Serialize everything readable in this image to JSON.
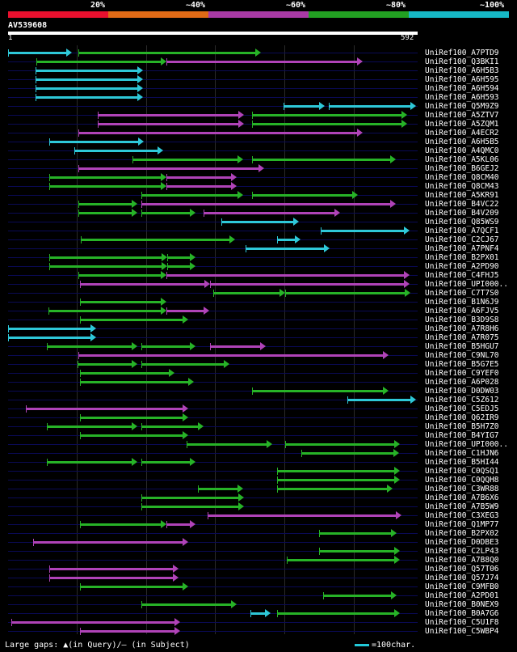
{
  "legend": {
    "labels": [
      "20%",
      "~40%",
      "~60%",
      "~80%",
      "~100%"
    ],
    "colors": [
      "#e8102e",
      "#e06a16",
      "#a93aa5",
      "#22a022",
      "#16b8c6"
    ]
  },
  "query": {
    "name": "AV539608",
    "start": "1",
    "end": "592",
    "length": 592
  },
  "colors": {
    "cyan": "#2ec8d8",
    "green": "#27b327",
    "magenta": "#b043b8",
    "row": "#0a0a55"
  },
  "hits": [
    {
      "name": "UniRef100_A7PTD9",
      "segs": [
        [
          0,
          92,
          "c"
        ],
        [
          102,
          365,
          "g"
        ]
      ]
    },
    {
      "name": "UniRef100_Q3BKI1",
      "segs": [
        [
          41,
          229,
          "g"
        ],
        [
          229,
          513,
          "m"
        ]
      ]
    },
    {
      "name": "UniRef100_A6H5B3",
      "segs": [
        [
          40,
          195,
          "c"
        ]
      ]
    },
    {
      "name": "UniRef100_A6H595",
      "segs": [
        [
          40,
          195,
          "c"
        ]
      ]
    },
    {
      "name": "UniRef100_A6H594",
      "segs": [
        [
          40,
          195,
          "c"
        ]
      ]
    },
    {
      "name": "UniRef100_A6H593",
      "segs": [
        [
          40,
          195,
          "c"
        ]
      ]
    },
    {
      "name": "UniRef100_Q5M9Z9",
      "segs": [
        [
          398,
          458,
          "c"
        ],
        [
          463,
          590,
          "c"
        ]
      ]
    },
    {
      "name": "UniRef100_A5ZTV7",
      "segs": [
        [
          130,
          341,
          "m"
        ],
        [
          352,
          577,
          "g"
        ]
      ]
    },
    {
      "name": "UniRef100_A5ZQM1",
      "segs": [
        [
          130,
          341,
          "m"
        ],
        [
          352,
          577,
          "g"
        ]
      ]
    },
    {
      "name": "UniRef100_A4ECR2",
      "segs": [
        [
          102,
          512,
          "m"
        ]
      ]
    },
    {
      "name": "UniRef100_A6H5B5",
      "segs": [
        [
          60,
          196,
          "c"
        ]
      ]
    },
    {
      "name": "UniRef100_A4QMC0",
      "segs": [
        [
          96,
          224,
          "c"
        ]
      ]
    },
    {
      "name": "UniRef100_A5KL06",
      "segs": [
        [
          180,
          340,
          "g"
        ],
        [
          353,
          560,
          "g"
        ]
      ]
    },
    {
      "name": "UniRef100_B6GEJ2",
      "segs": [
        [
          101,
          370,
          "m"
        ]
      ]
    },
    {
      "name": "UniRef100_Q8CM40",
      "segs": [
        [
          60,
          229,
          "g"
        ],
        [
          229,
          330,
          "m"
        ]
      ]
    },
    {
      "name": "UniRef100_Q8CM43",
      "segs": [
        [
          60,
          229,
          "g"
        ],
        [
          229,
          330,
          "m"
        ]
      ]
    },
    {
      "name": "UniRef100_A5KR91",
      "segs": [
        [
          193,
          340,
          "g"
        ],
        [
          353,
          505,
          "g"
        ]
      ]
    },
    {
      "name": "UniRef100_B4VC22",
      "segs": [
        [
          102,
          187,
          "g"
        ],
        [
          193,
          560,
          "m"
        ]
      ]
    },
    {
      "name": "UniRef100_B4V209",
      "segs": [
        [
          102,
          187,
          "g"
        ],
        [
          193,
          271,
          "g"
        ],
        [
          283,
          480,
          "m"
        ]
      ]
    },
    {
      "name": "UniRef100_Q85WS9",
      "segs": [
        [
          308,
          420,
          "c"
        ]
      ]
    },
    {
      "name": "UniRef100_A7QCF1",
      "segs": [
        [
          452,
          580,
          "c"
        ]
      ]
    },
    {
      "name": "UniRef100_C2CJ67",
      "segs": [
        [
          105,
          328,
          "g"
        ],
        [
          389,
          423,
          "c"
        ]
      ]
    },
    {
      "name": "UniRef100_A7PNF4",
      "segs": [
        [
          343,
          465,
          "c"
        ]
      ]
    },
    {
      "name": "UniRef100_B2PX01",
      "segs": [
        [
          60,
          230,
          "g"
        ],
        [
          230,
          271,
          "g"
        ]
      ]
    },
    {
      "name": "UniRef100_A2PD90",
      "segs": [
        [
          60,
          230,
          "g"
        ],
        [
          230,
          271,
          "g"
        ]
      ]
    },
    {
      "name": "UniRef100_C4FHJ5",
      "segs": [
        [
          102,
          229,
          "g"
        ],
        [
          229,
          580,
          "m"
        ]
      ]
    },
    {
      "name": "UniRef100_UPI000..",
      "segs": [
        [
          104,
          292,
          "m"
        ],
        [
          292,
          580,
          "m"
        ]
      ]
    },
    {
      "name": "UniRef100_C7T7S0",
      "segs": [
        [
          296,
          400,
          "g"
        ],
        [
          400,
          581,
          "g"
        ]
      ]
    },
    {
      "name": "UniRef100_B1N6J9",
      "segs": [
        [
          104,
          229,
          "g"
        ]
      ]
    },
    {
      "name": "UniRef100_A6FJV5",
      "segs": [
        [
          58,
          229,
          "g"
        ],
        [
          229,
          291,
          "m"
        ]
      ]
    },
    {
      "name": "UniRef100_B3D9S8",
      "segs": [
        [
          104,
          260,
          "g"
        ]
      ]
    },
    {
      "name": "UniRef100_A7R8H6",
      "segs": [
        [
          0,
          127,
          "c"
        ]
      ]
    },
    {
      "name": "UniRef100_A7R075",
      "segs": [
        [
          0,
          127,
          "c"
        ]
      ]
    },
    {
      "name": "UniRef100_B5HGU7",
      "segs": [
        [
          56,
          187,
          "g"
        ],
        [
          193,
          271,
          "g"
        ],
        [
          292,
          373,
          "m"
        ]
      ]
    },
    {
      "name": "UniRef100_C9NL70",
      "segs": [
        [
          102,
          550,
          "m"
        ]
      ]
    },
    {
      "name": "UniRef100_B5G7E5",
      "segs": [
        [
          100,
          187,
          "g"
        ],
        [
          193,
          320,
          "g"
        ]
      ]
    },
    {
      "name": "UniRef100_C9YEF0",
      "segs": [
        [
          104,
          240,
          "g"
        ]
      ]
    },
    {
      "name": "UniRef100_A6P028",
      "segs": [
        [
          104,
          269,
          "g"
        ]
      ]
    },
    {
      "name": "UniRef100_D0DW03",
      "segs": [
        [
          353,
          550,
          "g"
        ]
      ]
    },
    {
      "name": "UniRef100_C5Z612",
      "segs": [
        [
          490,
          590,
          "c"
        ]
      ]
    },
    {
      "name": "UniRef100_C5EDJ5",
      "segs": [
        [
          26,
          260,
          "m"
        ]
      ]
    },
    {
      "name": "UniRef100_Q62IR9",
      "segs": [
        [
          104,
          260,
          "g"
        ]
      ]
    },
    {
      "name": "UniRef100_B5H7Z0",
      "segs": [
        [
          56,
          187,
          "g"
        ],
        [
          193,
          283,
          "g"
        ]
      ]
    },
    {
      "name": "UniRef100_B4YIG7",
      "segs": [
        [
          104,
          260,
          "g"
        ]
      ]
    },
    {
      "name": "UniRef100_UPI000..",
      "segs": [
        [
          258,
          382,
          "g"
        ],
        [
          400,
          566,
          "g"
        ]
      ]
    },
    {
      "name": "UniRef100_C1HJN6",
      "segs": [
        [
          424,
          565,
          "g"
        ]
      ]
    },
    {
      "name": "UniRef100_B5HI44",
      "segs": [
        [
          56,
          187,
          "g"
        ],
        [
          193,
          271,
          "g"
        ]
      ]
    },
    {
      "name": "UniRef100_C0QSQ1",
      "segs": [
        [
          389,
          566,
          "g"
        ]
      ]
    },
    {
      "name": "UniRef100_C0QQH8",
      "segs": [
        [
          389,
          566,
          "g"
        ]
      ]
    },
    {
      "name": "UniRef100_C3WR88",
      "segs": [
        [
          274,
          340,
          "g"
        ],
        [
          389,
          556,
          "g"
        ]
      ]
    },
    {
      "name": "UniRef100_A7B6X6",
      "segs": [
        [
          193,
          341,
          "g"
        ]
      ]
    },
    {
      "name": "UniRef100_A7B5W9",
      "segs": [
        [
          193,
          341,
          "g"
        ]
      ]
    },
    {
      "name": "UniRef100_C3XEG3",
      "segs": [
        [
          288,
          569,
          "m"
        ]
      ]
    },
    {
      "name": "UniRef100_Q1MP77",
      "segs": [
        [
          104,
          229,
          "g"
        ],
        [
          229,
          271,
          "m"
        ]
      ]
    },
    {
      "name": "UniRef100_B2PX02",
      "segs": [
        [
          450,
          562,
          "g"
        ]
      ]
    },
    {
      "name": "UniRef100_D0DBE3",
      "segs": [
        [
          36,
          260,
          "m"
        ]
      ]
    },
    {
      "name": "UniRef100_C2LP43",
      "segs": [
        [
          449,
          566,
          "g"
        ]
      ]
    },
    {
      "name": "UniRef100_A7B8Q0",
      "segs": [
        [
          403,
          566,
          "g"
        ]
      ]
    },
    {
      "name": "UniRef100_Q57T06",
      "segs": [
        [
          60,
          246,
          "m"
        ]
      ]
    },
    {
      "name": "UniRef100_Q57J74",
      "segs": [
        [
          60,
          246,
          "m"
        ]
      ]
    },
    {
      "name": "UniRef100_C9MFB0",
      "segs": [
        [
          104,
          260,
          "g"
        ]
      ]
    },
    {
      "name": "UniRef100_A2PD01",
      "segs": [
        [
          455,
          562,
          "g"
        ]
      ]
    },
    {
      "name": "UniRef100_B0NEX9",
      "segs": [
        [
          193,
          330,
          "g"
        ]
      ]
    },
    {
      "name": "UniRef100_B0A7G6",
      "segs": [
        [
          350,
          380,
          "c"
        ],
        [
          389,
          566,
          "g"
        ]
      ]
    },
    {
      "name": "UniRef100_C5U1F8",
      "segs": [
        [
          5,
          249,
          "m"
        ]
      ]
    },
    {
      "name": "UniRef100_C5WBP4",
      "segs": [
        [
          104,
          249,
          "m"
        ]
      ]
    }
  ],
  "footer": {
    "gaps": "Large gaps: ▲(in Query)/– (in Subject)",
    "scale": "=100char."
  }
}
